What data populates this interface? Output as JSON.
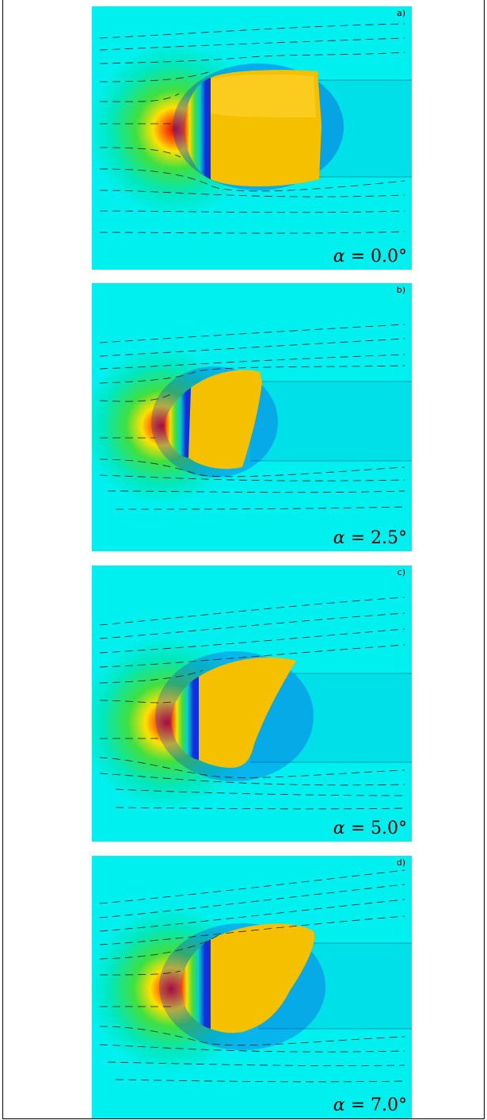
{
  "panels": [
    {
      "letter": "a)",
      "angle_symbol": "α",
      "angle_value": "= 0.0°"
    },
    {
      "letter": "b)",
      "angle_symbol": "α",
      "angle_value": "= 2.5°"
    },
    {
      "letter": "c)",
      "angle_symbol": "α",
      "angle_value": "= 5.0°"
    },
    {
      "letter": "d)",
      "angle_symbol": "α",
      "angle_value": "= 7.0°"
    }
  ],
  "colors": {
    "background_field": "#00f0f0",
    "bubble_body": "#f5c800",
    "stagnation": "#e01010",
    "band_blue": "#1030e0",
    "streamline": "#222222"
  }
}
